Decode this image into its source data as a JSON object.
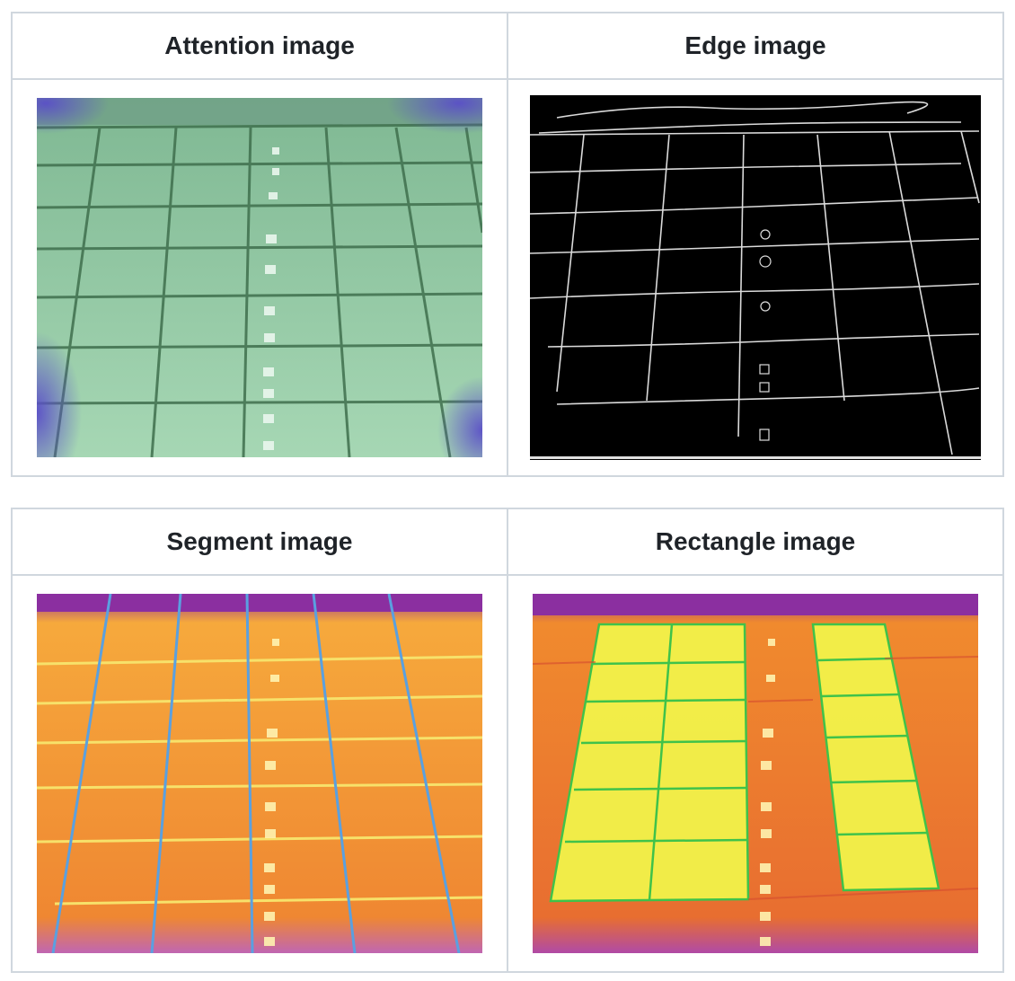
{
  "tables": [
    {
      "headers": [
        "Attention image",
        "Edge image"
      ]
    },
    {
      "headers": [
        "Segment image",
        "Rectangle image"
      ]
    }
  ],
  "images": {
    "attention": {
      "icon": "thermal-solar-panel-attention-map",
      "colors": {
        "overlay": "#8fcfa5",
        "grid": "#3f6f4d",
        "corner": "#5b4fc4"
      }
    },
    "edge": {
      "icon": "edge-detection-map",
      "colors": {
        "background": "#000000",
        "line": "#e6e6e6"
      }
    },
    "segment": {
      "icon": "thermal-solar-panel-segmentation",
      "colors": {
        "panel": "#f4a23a",
        "h_line": "#f7e16a",
        "v_line": "#5aa0e0",
        "edge": "#7a1e9a"
      }
    },
    "rectangle": {
      "icon": "thermal-solar-panel-rectangles",
      "colors": {
        "panel": "#f08a2e",
        "highlight": "#f1f24a",
        "box": "#3fc24a",
        "edge": "#7a1e9a"
      }
    }
  }
}
